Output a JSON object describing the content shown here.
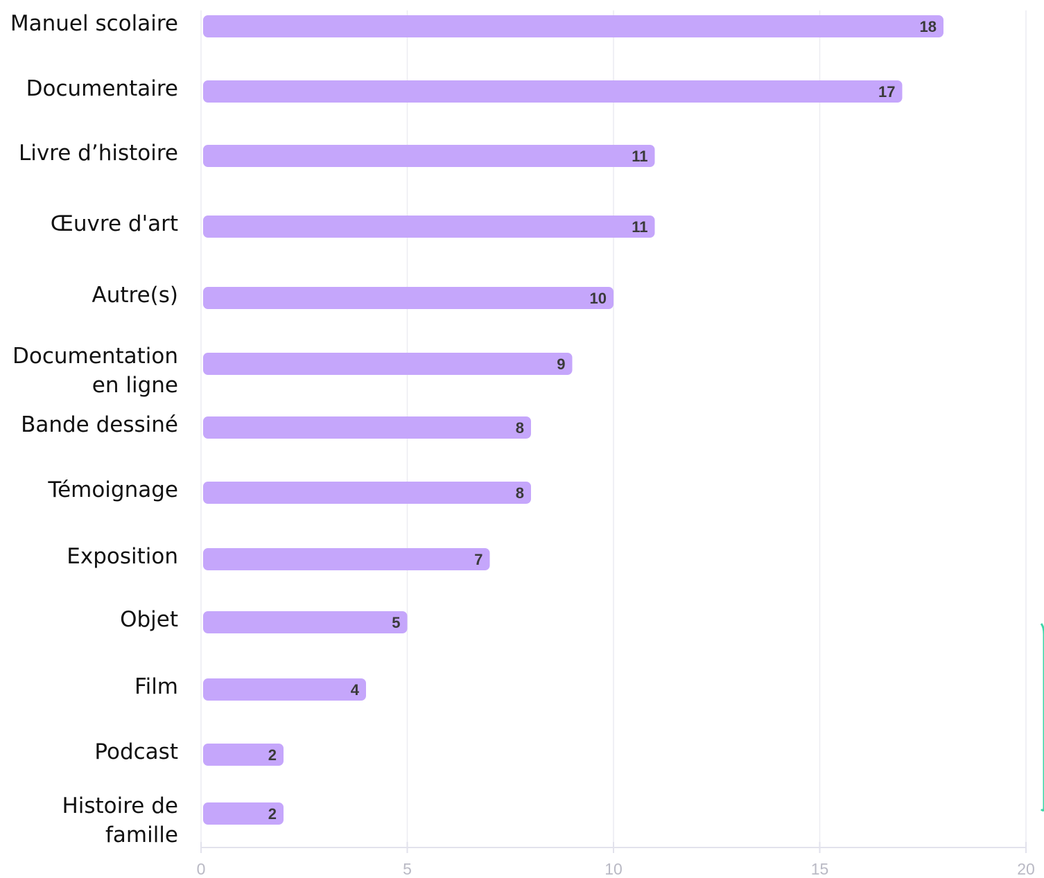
{
  "chart_data": {
    "type": "bar",
    "orientation": "horizontal",
    "categories": [
      "Manuel scolaire",
      "Documentaire",
      "Livre d’histoire",
      "Œuvre d'art",
      "Autre(s)",
      "Documentation en ligne",
      "Bande dessiné",
      "Témoignage",
      "Exposition",
      "Objet",
      "Film",
      "Podcast",
      "Histoire de famille"
    ],
    "category_lines": [
      [
        "Manuel scolaire"
      ],
      [
        "Documentaire"
      ],
      [
        "Livre d’histoire"
      ],
      [
        "Œuvre d'art"
      ],
      [
        "Autre(s)"
      ],
      [
        "Documentation",
        "en ligne"
      ],
      [
        "Bande dessiné"
      ],
      [
        "Témoignage"
      ],
      [
        "Exposition"
      ],
      [
        "Objet"
      ],
      [
        "Film"
      ],
      [
        "Podcast"
      ],
      [
        "Histoire de",
        "famille"
      ]
    ],
    "values": [
      18,
      17,
      11,
      11,
      10,
      9,
      8,
      8,
      7,
      5,
      4,
      2,
      2
    ],
    "xlim": [
      0,
      20
    ],
    "xticks": [
      "0",
      "5",
      "10",
      "15",
      "20"
    ],
    "grid": "vertical",
    "legend": "none",
    "colors": {
      "bar": "#c5a6fb",
      "grid": "#ececf2",
      "axis": "#e2e2ec",
      "tick_label": "#b9b9c4",
      "value_label": "#3a3a3a",
      "category_label": "#111111",
      "accent_edge": "#3fd6a8"
    }
  }
}
